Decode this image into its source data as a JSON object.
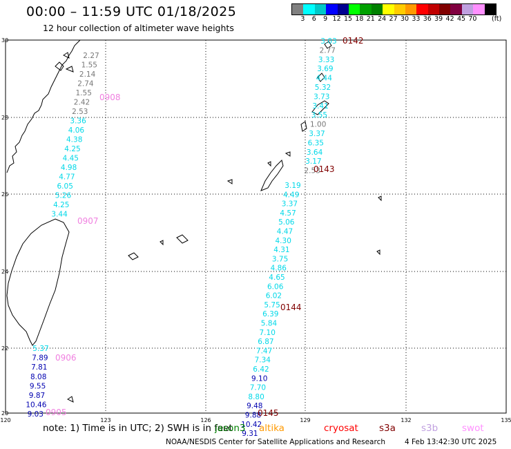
{
  "title": "00:00 – 11:59 UTC 01/18/2025",
  "subtitle": "12 hour collection of altimeter wave heights",
  "legend": {
    "colors": [
      "#808080",
      "#00ffff",
      "#00c8c8",
      "#0000ff",
      "#000090",
      "#00ff00",
      "#00a000",
      "#008000",
      "#ffff00",
      "#ffcc00",
      "#ff9900",
      "#ff0000",
      "#c00000",
      "#800000",
      "#800040",
      "#c0a0e0",
      "#ff90ff",
      "#000000"
    ],
    "ticks": [
      "3",
      "6",
      "9",
      "12",
      "15",
      "18",
      "21",
      "24",
      "27",
      "30",
      "33",
      "36",
      "39",
      "42",
      "45",
      "70"
    ],
    "unit": "(ft)"
  },
  "axes": {
    "x_ticks": [
      "120",
      "123",
      "126",
      "129",
      "132",
      "135"
    ],
    "y_ticks": [
      "30",
      "28",
      "26",
      "24",
      "22",
      "20"
    ]
  },
  "colors": {
    "gray": "#777777",
    "cyan": "#00d8e8",
    "darkblue": "#0000b0",
    "pink": "#f080e0",
    "darkred": "#800000"
  },
  "tracks": [
    {
      "time": "0908",
      "time_color": "pink",
      "points": [
        {
          "v": "2.27",
          "c": "gray"
        },
        {
          "v": "1.55",
          "c": "gray"
        },
        {
          "v": "2.14",
          "c": "gray"
        },
        {
          "v": "2.74",
          "c": "gray"
        },
        {
          "v": "1.55",
          "c": "gray"
        },
        {
          "v": "2.42",
          "c": "gray"
        },
        {
          "v": "2.53",
          "c": "gray"
        },
        {
          "v": "3.36",
          "c": "cyan"
        },
        {
          "v": "4.06",
          "c": "cyan"
        },
        {
          "v": "4.38",
          "c": "cyan"
        },
        {
          "v": "4.25",
          "c": "cyan"
        },
        {
          "v": "4.45",
          "c": "cyan"
        },
        {
          "v": "4.98",
          "c": "cyan"
        },
        {
          "v": "4.77",
          "c": "cyan"
        },
        {
          "v": "6.05",
          "c": "cyan"
        },
        {
          "v": "5.26",
          "c": "cyan"
        },
        {
          "v": "4.25",
          "c": "cyan"
        },
        {
          "v": "3.44",
          "c": "cyan"
        }
      ]
    },
    {
      "time": "0906",
      "time_color": "pink",
      "points": [
        {
          "v": "5.37",
          "c": "cyan"
        },
        {
          "v": "7.89",
          "c": "darkblue"
        },
        {
          "v": "7.81",
          "c": "darkblue"
        },
        {
          "v": "8.08",
          "c": "darkblue"
        },
        {
          "v": "9.55",
          "c": "darkblue"
        },
        {
          "v": "9.87",
          "c": "darkblue"
        },
        {
          "v": "10.46",
          "c": "darkblue"
        },
        {
          "v": "9.03",
          "c": "darkblue"
        }
      ]
    },
    {
      "time": "0142",
      "time_color": "darkred",
      "points": [
        {
          "v": "3.03",
          "c": "cyan"
        },
        {
          "v": "2.77",
          "c": "gray"
        },
        {
          "v": "3.33",
          "c": "cyan"
        },
        {
          "v": "3.69",
          "c": "cyan"
        },
        {
          "v": "4.44",
          "c": "cyan"
        },
        {
          "v": "5.32",
          "c": "cyan"
        },
        {
          "v": "3.73",
          "c": "cyan"
        },
        {
          "v": "3.41",
          "c": "cyan"
        },
        {
          "v": "3.55",
          "c": "cyan"
        },
        {
          "v": "1.00",
          "c": "gray"
        },
        {
          "v": "3.37",
          "c": "cyan"
        },
        {
          "v": "6.35",
          "c": "cyan"
        },
        {
          "v": "3.64",
          "c": "cyan"
        },
        {
          "v": "3.17",
          "c": "cyan"
        },
        {
          "v": "2.53",
          "c": "gray"
        }
      ]
    },
    {
      "time": "0144",
      "time_color": "darkred",
      "points": [
        {
          "v": "3.19",
          "c": "cyan"
        },
        {
          "v": "4.49",
          "c": "cyan"
        },
        {
          "v": "3.37",
          "c": "cyan"
        },
        {
          "v": "4.57",
          "c": "cyan"
        },
        {
          "v": "5.06",
          "c": "cyan"
        },
        {
          "v": "4.47",
          "c": "cyan"
        },
        {
          "v": "4.30",
          "c": "cyan"
        },
        {
          "v": "4.31",
          "c": "cyan"
        },
        {
          "v": "3.75",
          "c": "cyan"
        },
        {
          "v": "4.86",
          "c": "cyan"
        },
        {
          "v": "4.65",
          "c": "cyan"
        },
        {
          "v": "6.06",
          "c": "cyan"
        },
        {
          "v": "6.02",
          "c": "cyan"
        },
        {
          "v": "5.75",
          "c": "cyan"
        },
        {
          "v": "6.39",
          "c": "cyan"
        },
        {
          "v": "5.84",
          "c": "cyan"
        },
        {
          "v": "7.10",
          "c": "cyan"
        },
        {
          "v": "6.87",
          "c": "cyan"
        },
        {
          "v": "7.47",
          "c": "cyan"
        },
        {
          "v": "7.34",
          "c": "cyan"
        },
        {
          "v": "6.42",
          "c": "cyan"
        },
        {
          "v": "9.10",
          "c": "darkblue"
        },
        {
          "v": "7.70",
          "c": "cyan"
        },
        {
          "v": "8.80",
          "c": "cyan"
        },
        {
          "v": "9.48",
          "c": "darkblue"
        },
        {
          "v": "9.88",
          "c": "darkblue"
        },
        {
          "v": "10.42",
          "c": "darkblue"
        },
        {
          "v": "9.31",
          "c": "darkblue"
        }
      ]
    }
  ],
  "time_labels": {
    "t0907": "0907",
    "t0905": "0905",
    "t0143": "0143",
    "t0145": "0145"
  },
  "footer": {
    "note": "note:  1) Time is in UTC;  2) SWH is in feet",
    "satellites": [
      {
        "name": "jason3",
        "color": "#008000"
      },
      {
        "name": "altika",
        "color": "#ff9900"
      },
      {
        "name": "cryosat",
        "color": "#ff0000"
      },
      {
        "name": "s3a",
        "color": "#800000"
      },
      {
        "name": "s3b",
        "color": "#c0a0e0"
      },
      {
        "name": "swot",
        "color": "#ff90ff"
      }
    ],
    "credit": "NOAA/NESDIS Center for Satellite Applications and Research",
    "timestamp": "4 Feb 13:42:30 UTC 2025"
  }
}
